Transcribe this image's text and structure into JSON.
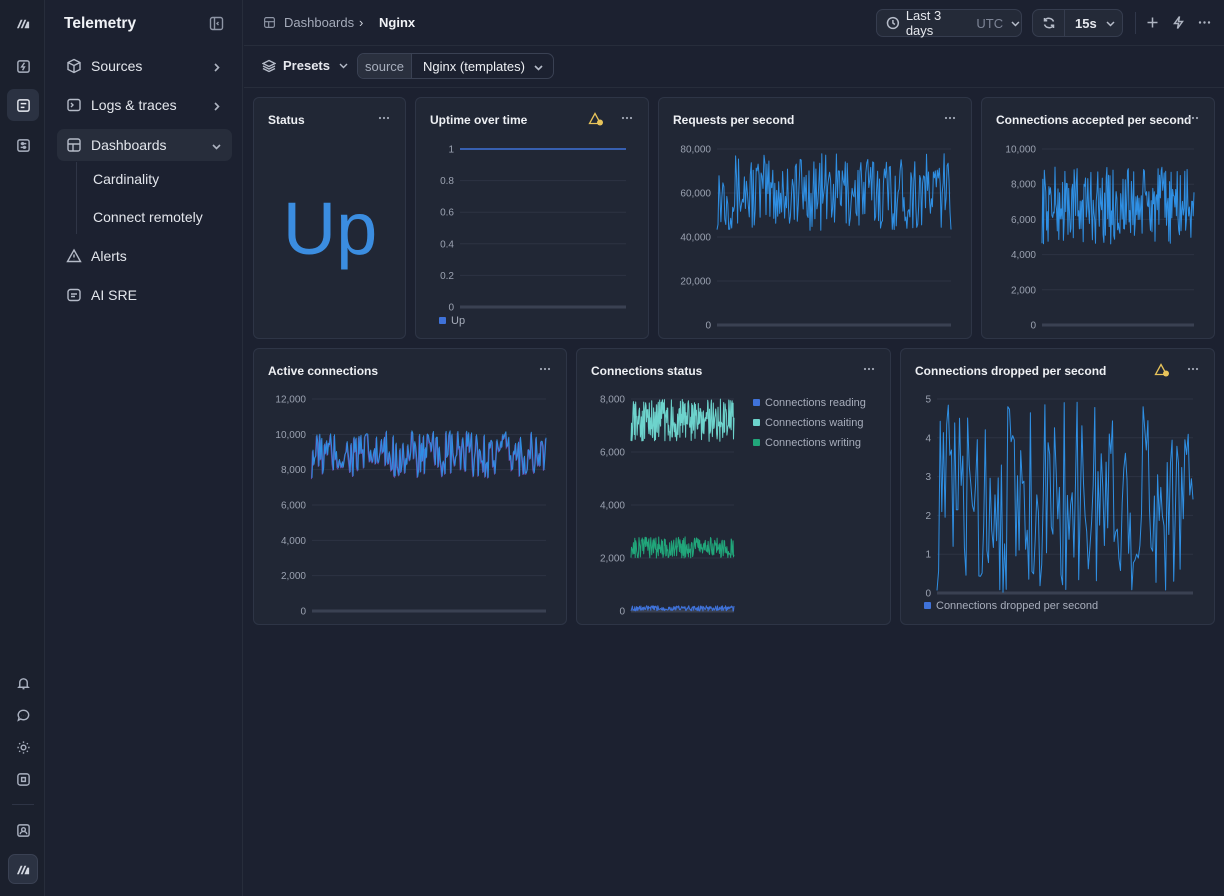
{
  "app": {
    "title": "Telemetry"
  },
  "sidebar": {
    "items": [
      {
        "label": "Sources",
        "icon": "cube-icon"
      },
      {
        "label": "Logs & traces",
        "icon": "terminal-icon"
      },
      {
        "label": "Dashboards",
        "icon": "dashboard-icon"
      },
      {
        "label": "Alerts",
        "icon": "warning-icon"
      },
      {
        "label": "AI SRE",
        "icon": "chat-icon"
      }
    ],
    "subitems": [
      "Cardinality",
      "Connect remotely"
    ]
  },
  "breadcrumb": {
    "parent": "Dashboards",
    "separator": "›",
    "current": "Nginx"
  },
  "timerange": {
    "label": "Last 3 days",
    "tz": "UTC"
  },
  "refresh": {
    "interval": "15s"
  },
  "toolbar": {
    "presets_label": "Presets",
    "source_key": "source",
    "source_value": "Nginx (templates)"
  },
  "colors": {
    "accent": "#3b8de0",
    "line_blue": "#2f8fe3",
    "reading": "#3f72d9",
    "waiting": "#6dd3cc",
    "writing": "#21a67a",
    "warn": "#e7c35a"
  },
  "panels": {
    "status": {
      "title": "Status",
      "value": "Up"
    },
    "uptime": {
      "title": "Uptime over time",
      "legend": "Up"
    },
    "rps": {
      "title": "Requests per second"
    },
    "accepted": {
      "title": "Connections accepted per second"
    },
    "active": {
      "title": "Active connections"
    },
    "conn_status": {
      "title": "Connections status",
      "legend": [
        "Connections reading",
        "Connections waiting",
        "Connections writing"
      ]
    },
    "dropped": {
      "title": "Connections dropped per second",
      "legend": "Connections dropped per second"
    }
  },
  "chart_data": [
    {
      "id": "uptime",
      "type": "line",
      "ymin": 0,
      "ymax": 1,
      "yticks": [
        "1",
        "0.8",
        "0.6",
        "0.4",
        "0.2",
        "0"
      ],
      "series": [
        {
          "name": "Up",
          "min": 1,
          "max": 1
        }
      ]
    },
    {
      "id": "rps",
      "type": "line",
      "ymin": 0,
      "ymax": 80000,
      "yticks": [
        "80,000",
        "60,000",
        "40,000",
        "20,000",
        "0"
      ],
      "series": [
        {
          "min": 43000,
          "max": 78000
        }
      ]
    },
    {
      "id": "accepted",
      "type": "line",
      "ymin": 0,
      "ymax": 10000,
      "yticks": [
        "10,000",
        "8,000",
        "6,000",
        "4,000",
        "2,000",
        "0"
      ],
      "series": [
        {
          "min": 4600,
          "max": 9000
        }
      ]
    },
    {
      "id": "active",
      "type": "line",
      "ymin": 0,
      "ymax": 12000,
      "yticks": [
        "12,000",
        "10,000",
        "8,000",
        "6,000",
        "4,000",
        "2,000",
        "0"
      ],
      "series": [
        {
          "min": 7500,
          "max": 10200
        }
      ]
    },
    {
      "id": "conn_status",
      "type": "line",
      "ymin": 0,
      "ymax": 8000,
      "yticks": [
        "8,000",
        "6,000",
        "4,000",
        "2,000",
        "0"
      ],
      "series": [
        {
          "name": "Connections reading",
          "min": 0,
          "max": 200
        },
        {
          "name": "Connections waiting",
          "min": 6400,
          "max": 8000
        },
        {
          "name": "Connections writing",
          "min": 2000,
          "max": 2800
        }
      ]
    },
    {
      "id": "dropped",
      "type": "line",
      "ymin": 0,
      "ymax": 5,
      "yticks": [
        "5",
        "4",
        "3",
        "2",
        "1",
        "0"
      ],
      "series": [
        {
          "name": "Connections dropped per second",
          "min": 0,
          "max": 5
        }
      ]
    }
  ]
}
